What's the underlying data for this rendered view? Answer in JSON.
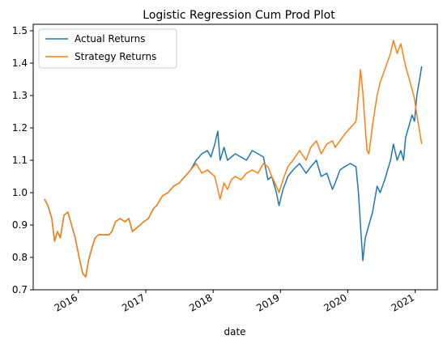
{
  "chart_data": {
    "type": "line",
    "title": "Logistic Regression Cum Prod Plot",
    "xlabel": "date",
    "ylabel": "",
    "xlim": [
      "2015-05-01",
      "2021-05-01"
    ],
    "ylim": [
      0.7,
      1.52
    ],
    "x_ticks": [
      "2016",
      "2017",
      "2018",
      "2019",
      "2020",
      "2021"
    ],
    "y_ticks": [
      "0.7",
      "0.8",
      "0.9",
      "1.0",
      "1.1",
      "1.2",
      "1.3",
      "1.4",
      "1.5"
    ],
    "grid": false,
    "legend_position": "top-left",
    "series": [
      {
        "name": "Actual Returns",
        "color": "#1f77b4",
        "points": [
          [
            "2015-07-01",
            0.98
          ],
          [
            "2015-07-20",
            0.96
          ],
          [
            "2015-08-10",
            0.92
          ],
          [
            "2015-08-25",
            0.85
          ],
          [
            "2015-09-10",
            0.88
          ],
          [
            "2015-09-25",
            0.86
          ],
          [
            "2015-10-15",
            0.93
          ],
          [
            "2015-11-05",
            0.94
          ],
          [
            "2015-11-25",
            0.9
          ],
          [
            "2015-12-15",
            0.86
          ],
          [
            "2016-01-05",
            0.8
          ],
          [
            "2016-01-25",
            0.75
          ],
          [
            "2016-02-10",
            0.74
          ],
          [
            "2016-02-25",
            0.79
          ],
          [
            "2016-03-15",
            0.83
          ],
          [
            "2016-04-01",
            0.86
          ],
          [
            "2016-04-20",
            0.87
          ],
          [
            "2016-06-15",
            0.87
          ],
          [
            "2016-07-01",
            0.88
          ],
          [
            "2016-07-20",
            0.91
          ],
          [
            "2016-08-15",
            0.92
          ],
          [
            "2016-09-10",
            0.91
          ],
          [
            "2016-10-01",
            0.92
          ],
          [
            "2016-10-20",
            0.88
          ],
          [
            "2016-11-10",
            0.89
          ],
          [
            "2016-12-01",
            0.9
          ],
          [
            "2016-12-20",
            0.91
          ],
          [
            "2017-01-15",
            0.92
          ],
          [
            "2017-02-10",
            0.95
          ],
          [
            "2017-03-01",
            0.96
          ],
          [
            "2017-04-01",
            0.99
          ],
          [
            "2017-05-01",
            1.0
          ],
          [
            "2017-06-01",
            1.02
          ],
          [
            "2017-07-01",
            1.03
          ],
          [
            "2017-08-01",
            1.05
          ],
          [
            "2017-09-01",
            1.07
          ],
          [
            "2017-10-01",
            1.1
          ],
          [
            "2017-11-01",
            1.12
          ],
          [
            "2017-12-01",
            1.13
          ],
          [
            "2017-12-20",
            1.11
          ],
          [
            "2018-01-10",
            1.15
          ],
          [
            "2018-01-26",
            1.19
          ],
          [
            "2018-02-08",
            1.1
          ],
          [
            "2018-03-01",
            1.14
          ],
          [
            "2018-03-20",
            1.1
          ],
          [
            "2018-04-10",
            1.11
          ],
          [
            "2018-05-01",
            1.12
          ],
          [
            "2018-06-01",
            1.11
          ],
          [
            "2018-07-01",
            1.1
          ],
          [
            "2018-08-01",
            1.13
          ],
          [
            "2018-09-01",
            1.12
          ],
          [
            "2018-10-01",
            1.11
          ],
          [
            "2018-10-25",
            1.04
          ],
          [
            "2018-11-15",
            1.05
          ],
          [
            "2018-12-10",
            1.0
          ],
          [
            "2018-12-24",
            0.96
          ],
          [
            "2019-01-15",
            1.01
          ],
          [
            "2019-02-10",
            1.05
          ],
          [
            "2019-03-10",
            1.07
          ],
          [
            "2019-04-15",
            1.09
          ],
          [
            "2019-05-20",
            1.06
          ],
          [
            "2019-06-15",
            1.08
          ],
          [
            "2019-07-15",
            1.1
          ],
          [
            "2019-08-10",
            1.05
          ],
          [
            "2019-09-10",
            1.06
          ],
          [
            "2019-10-10",
            1.01
          ],
          [
            "2019-10-25",
            1.03
          ],
          [
            "2019-11-20",
            1.07
          ],
          [
            "2019-12-15",
            1.08
          ],
          [
            "2020-01-15",
            1.09
          ],
          [
            "2020-02-15",
            1.08
          ],
          [
            "2020-02-28",
            1.0
          ],
          [
            "2020-03-10",
            0.9
          ],
          [
            "2020-03-23",
            0.79
          ],
          [
            "2020-04-05",
            0.86
          ],
          [
            "2020-04-20",
            0.89
          ],
          [
            "2020-05-15",
            0.94
          ],
          [
            "2020-06-08",
            1.02
          ],
          [
            "2020-06-25",
            1.0
          ],
          [
            "2020-07-20",
            1.04
          ],
          [
            "2020-08-20",
            1.1
          ],
          [
            "2020-09-05",
            1.15
          ],
          [
            "2020-09-25",
            1.1
          ],
          [
            "2020-10-15",
            1.13
          ],
          [
            "2020-10-30",
            1.1
          ],
          [
            "2020-11-10",
            1.17
          ],
          [
            "2020-11-25",
            1.2
          ],
          [
            "2020-12-15",
            1.24
          ],
          [
            "2020-12-28",
            1.22
          ],
          [
            "2021-01-10",
            1.3
          ],
          [
            "2021-01-25",
            1.35
          ],
          [
            "2021-02-05",
            1.39
          ]
        ]
      },
      {
        "name": "Strategy Returns",
        "color": "#ff7f0e",
        "points": [
          [
            "2015-07-01",
            0.98
          ],
          [
            "2015-07-20",
            0.96
          ],
          [
            "2015-08-10",
            0.92
          ],
          [
            "2015-08-25",
            0.85
          ],
          [
            "2015-09-10",
            0.88
          ],
          [
            "2015-09-25",
            0.86
          ],
          [
            "2015-10-15",
            0.93
          ],
          [
            "2015-11-05",
            0.94
          ],
          [
            "2015-11-25",
            0.9
          ],
          [
            "2015-12-15",
            0.86
          ],
          [
            "2016-01-05",
            0.8
          ],
          [
            "2016-01-25",
            0.75
          ],
          [
            "2016-02-10",
            0.74
          ],
          [
            "2016-02-25",
            0.79
          ],
          [
            "2016-03-15",
            0.83
          ],
          [
            "2016-04-01",
            0.86
          ],
          [
            "2016-04-20",
            0.87
          ],
          [
            "2016-06-15",
            0.87
          ],
          [
            "2016-07-01",
            0.88
          ],
          [
            "2016-07-20",
            0.91
          ],
          [
            "2016-08-15",
            0.92
          ],
          [
            "2016-09-10",
            0.91
          ],
          [
            "2016-10-01",
            0.92
          ],
          [
            "2016-10-20",
            0.88
          ],
          [
            "2016-11-10",
            0.89
          ],
          [
            "2016-12-01",
            0.9
          ],
          [
            "2016-12-20",
            0.91
          ],
          [
            "2017-01-15",
            0.92
          ],
          [
            "2017-02-10",
            0.95
          ],
          [
            "2017-03-01",
            0.96
          ],
          [
            "2017-04-01",
            0.99
          ],
          [
            "2017-05-01",
            1.0
          ],
          [
            "2017-06-01",
            1.02
          ],
          [
            "2017-07-01",
            1.03
          ],
          [
            "2017-08-01",
            1.05
          ],
          [
            "2017-09-01",
            1.07
          ],
          [
            "2017-10-01",
            1.09
          ],
          [
            "2017-11-01",
            1.06
          ],
          [
            "2017-12-01",
            1.07
          ],
          [
            "2018-01-10",
            1.05
          ],
          [
            "2018-02-08",
            0.98
          ],
          [
            "2018-03-01",
            1.03
          ],
          [
            "2018-03-20",
            1.01
          ],
          [
            "2018-04-10",
            1.04
          ],
          [
            "2018-05-01",
            1.05
          ],
          [
            "2018-06-01",
            1.04
          ],
          [
            "2018-07-01",
            1.06
          ],
          [
            "2018-08-01",
            1.07
          ],
          [
            "2018-09-01",
            1.06
          ],
          [
            "2018-10-01",
            1.09
          ],
          [
            "2018-10-25",
            1.08
          ],
          [
            "2018-11-15",
            1.05
          ],
          [
            "2018-12-10",
            1.02
          ],
          [
            "2018-12-24",
            1.0
          ],
          [
            "2019-01-15",
            1.04
          ],
          [
            "2019-02-10",
            1.08
          ],
          [
            "2019-03-10",
            1.1
          ],
          [
            "2019-04-15",
            1.13
          ],
          [
            "2019-05-20",
            1.1
          ],
          [
            "2019-06-15",
            1.14
          ],
          [
            "2019-07-15",
            1.16
          ],
          [
            "2019-08-10",
            1.12
          ],
          [
            "2019-09-10",
            1.15
          ],
          [
            "2019-10-10",
            1.16
          ],
          [
            "2019-10-25",
            1.14
          ],
          [
            "2019-11-20",
            1.16
          ],
          [
            "2019-12-15",
            1.18
          ],
          [
            "2020-01-15",
            1.2
          ],
          [
            "2020-02-15",
            1.22
          ],
          [
            "2020-02-28",
            1.3
          ],
          [
            "2020-03-10",
            1.38
          ],
          [
            "2020-03-23",
            1.31
          ],
          [
            "2020-04-05",
            1.2
          ],
          [
            "2020-04-15",
            1.13
          ],
          [
            "2020-04-25",
            1.12
          ],
          [
            "2020-05-15",
            1.21
          ],
          [
            "2020-06-08",
            1.3
          ],
          [
            "2020-06-25",
            1.34
          ],
          [
            "2020-07-20",
            1.38
          ],
          [
            "2020-08-20",
            1.43
          ],
          [
            "2020-09-05",
            1.47
          ],
          [
            "2020-09-25",
            1.43
          ],
          [
            "2020-10-15",
            1.46
          ],
          [
            "2020-10-30",
            1.42
          ],
          [
            "2020-11-10",
            1.39
          ],
          [
            "2020-11-25",
            1.36
          ],
          [
            "2020-12-15",
            1.32
          ],
          [
            "2020-12-28",
            1.29
          ],
          [
            "2021-01-10",
            1.24
          ],
          [
            "2021-01-25",
            1.19
          ],
          [
            "2021-02-05",
            1.15
          ]
        ]
      }
    ]
  }
}
